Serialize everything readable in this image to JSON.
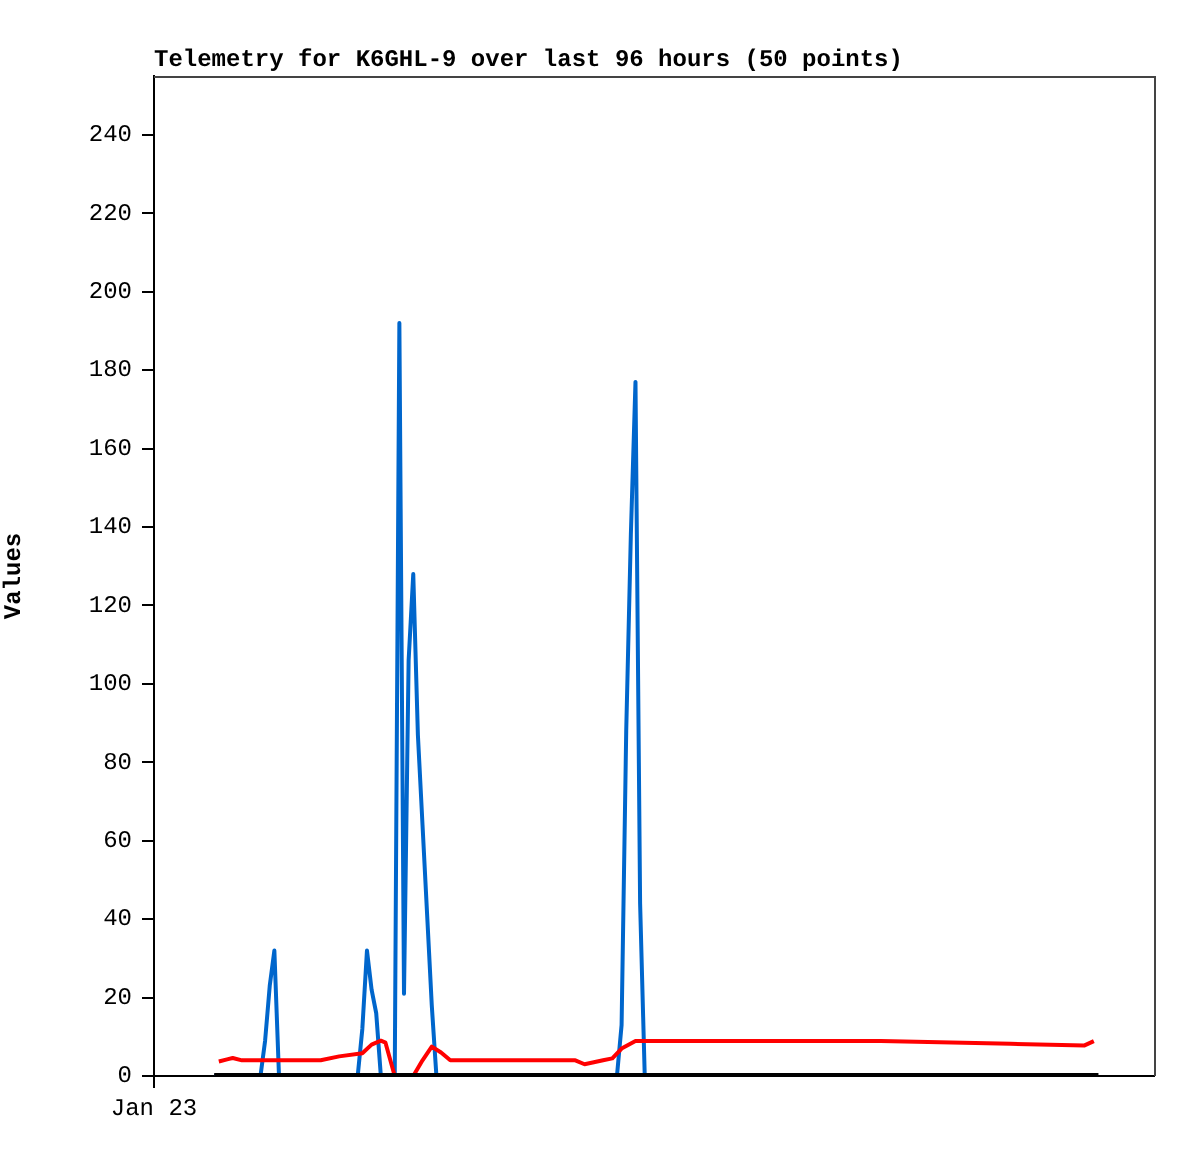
{
  "chart_data": {
    "type": "line",
    "title": "Telemetry for K6GHL-9 over last 96 hours (50 points)",
    "ylabel": "Values",
    "categories": [
      "Jan 23",
      null,
      null,
      null,
      null,
      null,
      null,
      null,
      null,
      null,
      null,
      null,
      null,
      null,
      null,
      null,
      null,
      null,
      null,
      null,
      null,
      null,
      null,
      null,
      null,
      null,
      null,
      null,
      null,
      null,
      null,
      null,
      null,
      null,
      null,
      null,
      null,
      null,
      null,
      null,
      null,
      null,
      null,
      null,
      null,
      null,
      null,
      null,
      null,
      null,
      null,
      null,
      null,
      null,
      null,
      null,
      null,
      null,
      null,
      null,
      null,
      null,
      null,
      null,
      null,
      null,
      null,
      null,
      null,
      null,
      null,
      null,
      null,
      null,
      null,
      null,
      null,
      null,
      null,
      null,
      null,
      null,
      null,
      null,
      null,
      null,
      null,
      null,
      null,
      null,
      null,
      null,
      null,
      null,
      null,
      null,
      null,
      null,
      null,
      null,
      null,
      null,
      null,
      null,
      null,
      null,
      null,
      null,
      null,
      null,
      null,
      null,
      null,
      null,
      null,
      null,
      null,
      null,
      null,
      null,
      null,
      null,
      null,
      null,
      null,
      null,
      null,
      null,
      null,
      null,
      null,
      null,
      null,
      null,
      null,
      null,
      null,
      null,
      null,
      null,
      null,
      null,
      null,
      null,
      null,
      null,
      null,
      null,
      null,
      null,
      null,
      null,
      null,
      null,
      null,
      null,
      null,
      null,
      null,
      null,
      null,
      null,
      null,
      null,
      null,
      null,
      null,
      null,
      null,
      null,
      null,
      null,
      null,
      null,
      null,
      null,
      null,
      null,
      null,
      null,
      null,
      null,
      null,
      null,
      null,
      null,
      null,
      null,
      null,
      null,
      null,
      null,
      null,
      null,
      null,
      null,
      null,
      null,
      null,
      null,
      null,
      null,
      null,
      null,
      null,
      null,
      null,
      null,
      null,
      null,
      null,
      null,
      null,
      null,
      null,
      null,
      null
    ],
    "ylim": [
      0,
      255
    ],
    "yticks": [
      0,
      20,
      40,
      60,
      80,
      100,
      120,
      140,
      160,
      180,
      200,
      220,
      240
    ],
    "grid": false,
    "legend": false,
    "marker": "none",
    "line_style": "solid",
    "series": [
      {
        "color": "#0066cc",
        "values": [
          null,
          null,
          null,
          null,
          null,
          null,
          null,
          null,
          null,
          null,
          null,
          null,
          null,
          0,
          null,
          null,
          null,
          null,
          null,
          null,
          null,
          null,
          null,
          0,
          9,
          23,
          32,
          0,
          null,
          null,
          null,
          null,
          null,
          null,
          null,
          null,
          null,
          null,
          null,
          null,
          null,
          null,
          null,
          null,
          0,
          12,
          32,
          22,
          16,
          0,
          null,
          null,
          0,
          192,
          21,
          106,
          128,
          87,
          64,
          41,
          18,
          0,
          null,
          null,
          null,
          null,
          null,
          null,
          null,
          null,
          null,
          null,
          null,
          null,
          null,
          null,
          null,
          null,
          null,
          null,
          null,
          null,
          null,
          null,
          null,
          null,
          null,
          null,
          null,
          null,
          null,
          null,
          null,
          null,
          null,
          null,
          null,
          null,
          null,
          null,
          0,
          13,
          88,
          138,
          177,
          44,
          0,
          null,
          null,
          null,
          null,
          null,
          null,
          null,
          null,
          null,
          null,
          null,
          null,
          null,
          null,
          null,
          null,
          null,
          null,
          null,
          null,
          null,
          null,
          null,
          null,
          null,
          null,
          null,
          null,
          null,
          null,
          null,
          null,
          null,
          null,
          null,
          null,
          null,
          null,
          null,
          null,
          null,
          null,
          null,
          null,
          null,
          null,
          null,
          null,
          null,
          null,
          null,
          null,
          null,
          null,
          null,
          null,
          null,
          null,
          null,
          null,
          null,
          null,
          null,
          null,
          null,
          null,
          null,
          null,
          null,
          null,
          null,
          null,
          null,
          null,
          null,
          null,
          null,
          null,
          null,
          null,
          null,
          null,
          null,
          null,
          null,
          null,
          null,
          null,
          null,
          null,
          null,
          null,
          null,
          0,
          null,
          null,
          null,
          null,
          null,
          null,
          null,
          null,
          null,
          null,
          null,
          null,
          null,
          null,
          null,
          null
        ]
      },
      {
        "color": "#ff0000",
        "values": [
          null,
          null,
          null,
          null,
          null,
          null,
          null,
          null,
          null,
          null,
          null,
          null,
          null,
          null,
          3.7,
          null,
          4.3,
          4.6,
          null,
          4,
          null,
          null,
          null,
          null,
          null,
          null,
          null,
          null,
          null,
          null,
          null,
          null,
          null,
          null,
          null,
          null,
          4,
          null,
          null,
          null,
          5,
          null,
          null,
          null,
          null,
          5.8,
          null,
          8,
          null,
          9,
          8.5,
          null,
          0,
          null,
          null,
          null,
          0,
          null,
          4,
          null,
          7.5,
          null,
          6,
          null,
          4,
          null,
          null,
          null,
          null,
          null,
          null,
          null,
          null,
          null,
          null,
          null,
          null,
          null,
          null,
          null,
          null,
          null,
          null,
          null,
          null,
          null,
          null,
          null,
          null,
          null,
          null,
          4,
          null,
          3,
          null,
          null,
          null,
          4,
          null,
          4.5,
          null,
          7,
          null,
          null,
          8.9,
          null,
          null,
          null,
          null,
          null,
          null,
          null,
          null,
          null,
          null,
          null,
          null,
          null,
          null,
          null,
          null,
          null,
          null,
          null,
          null,
          null,
          null,
          null,
          null,
          null,
          null,
          null,
          null,
          null,
          null,
          null,
          null,
          null,
          null,
          null,
          null,
          null,
          null,
          null,
          null,
          null,
          null,
          null,
          null,
          null,
          null,
          null,
          null,
          null,
          null,
          null,
          null,
          8.9,
          null,
          null,
          null,
          null,
          null,
          null,
          null,
          null,
          null,
          null,
          null,
          null,
          null,
          null,
          null,
          null,
          null,
          null,
          null,
          null,
          null,
          null,
          null,
          null,
          null,
          null,
          null,
          8.2,
          null,
          null,
          null,
          null,
          null,
          null,
          null,
          null,
          null,
          null,
          null,
          null,
          null,
          null,
          null,
          7.8,
          null,
          8.9,
          null,
          null,
          null,
          null,
          null,
          null,
          null,
          null,
          null,
          null,
          null,
          null,
          null
        ]
      },
      {
        "color": "#000000",
        "values": [
          null,
          null,
          null,
          null,
          null,
          null,
          null,
          null,
          null,
          null,
          null,
          null,
          null,
          0,
          null,
          null,
          null,
          null,
          null,
          null,
          null,
          null,
          null,
          null,
          null,
          null,
          null,
          null,
          null,
          null,
          null,
          null,
          null,
          null,
          null,
          null,
          null,
          null,
          null,
          null,
          null,
          null,
          null,
          null,
          null,
          null,
          null,
          null,
          null,
          null,
          null,
          null,
          null,
          null,
          null,
          null,
          null,
          null,
          null,
          null,
          null,
          null,
          null,
          null,
          null,
          null,
          null,
          null,
          null,
          null,
          null,
          null,
          null,
          null,
          null,
          null,
          null,
          null,
          null,
          null,
          null,
          null,
          null,
          null,
          null,
          null,
          null,
          null,
          null,
          null,
          null,
          null,
          null,
          null,
          null,
          null,
          null,
          null,
          null,
          null,
          null,
          null,
          null,
          null,
          null,
          null,
          null,
          null,
          null,
          null,
          null,
          null,
          null,
          null,
          null,
          null,
          null,
          null,
          null,
          null,
          null,
          null,
          null,
          null,
          null,
          null,
          null,
          null,
          null,
          null,
          null,
          null,
          null,
          null,
          null,
          null,
          null,
          null,
          null,
          null,
          null,
          null,
          null,
          null,
          null,
          null,
          null,
          null,
          null,
          null,
          null,
          null,
          null,
          null,
          null,
          null,
          null,
          null,
          null,
          null,
          null,
          null,
          null,
          null,
          null,
          null,
          null,
          null,
          null,
          null,
          null,
          null,
          null,
          null,
          null,
          null,
          null,
          null,
          null,
          null,
          null,
          null,
          null,
          null,
          null,
          null,
          null,
          null,
          null,
          null,
          null,
          null,
          null,
          null,
          null,
          null,
          null,
          null,
          null,
          null,
          null,
          null,
          null,
          null,
          0,
          null,
          null,
          null,
          null,
          null,
          null,
          null,
          null,
          null,
          null,
          null,
          null
        ]
      }
    ]
  }
}
